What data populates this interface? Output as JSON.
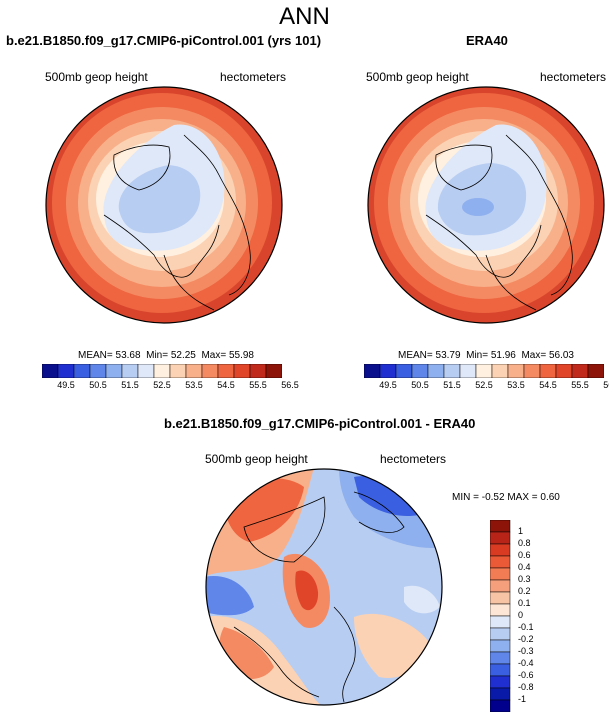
{
  "main_title": "ANN",
  "panel1": {
    "title": "b.e21.B1850.f09_g17.CMIP6-piControl.001 (yrs 101)",
    "var_label": "500mb geop height",
    "units": "hectometers",
    "stats": {
      "mean_label": "MEAN=",
      "mean": "53.68",
      "min_label": "Min=",
      "min": "52.25",
      "max_label": "Max=",
      "max": "55.98"
    }
  },
  "panel2": {
    "title": "ERA40",
    "var_label": "500mb geop height",
    "units": "hectometers",
    "stats": {
      "mean_label": "MEAN=",
      "mean": "53.79",
      "min_label": "Min=",
      "min": "51.96",
      "max_label": "Max=",
      "max": "56.03"
    }
  },
  "panel3": {
    "title": "b.e21.B1850.f09_g17.CMIP6-piControl.001 - ERA40",
    "var_label": "500mb geop height",
    "units": "hectometers",
    "stats": {
      "min_label": "MIN =",
      "min": "-0.52",
      "max_label": "MAX =",
      "max": "0.60"
    }
  },
  "colorbar_horizontal": {
    "labels": [
      "49.5",
      "50.5",
      "51.5",
      "52.5",
      "53.5",
      "54.5",
      "55.5",
      "56.5"
    ],
    "colors": [
      "#0a0f8c",
      "#1f2fd0",
      "#3a5fe0",
      "#5f86e8",
      "#8fb0ee",
      "#b8cdf2",
      "#dfe8f8",
      "#fff0e0",
      "#fbd2b4",
      "#f8b08a",
      "#f48a62",
      "#ee6540",
      "#e0452a",
      "#c02a1c",
      "#8c1408"
    ]
  },
  "colorbar_vertical": {
    "labels": [
      "1",
      "0.8",
      "0.6",
      "0.4",
      "0.3",
      "0.2",
      "0.1",
      "0",
      "-0.1",
      "-0.2",
      "-0.3",
      "-0.4",
      "-0.6",
      "-0.8",
      "-1"
    ],
    "colors": [
      "#8c1408",
      "#b82418",
      "#d83a22",
      "#ea5a36",
      "#f27c54",
      "#f59f7c",
      "#f8c4a6",
      "#fde6d6",
      "#dfe8f8",
      "#b8cdf2",
      "#8fb0ee",
      "#5f86e8",
      "#3a5fe0",
      "#1f2fd0",
      "#0a1aa8",
      "#00008c"
    ]
  }
}
